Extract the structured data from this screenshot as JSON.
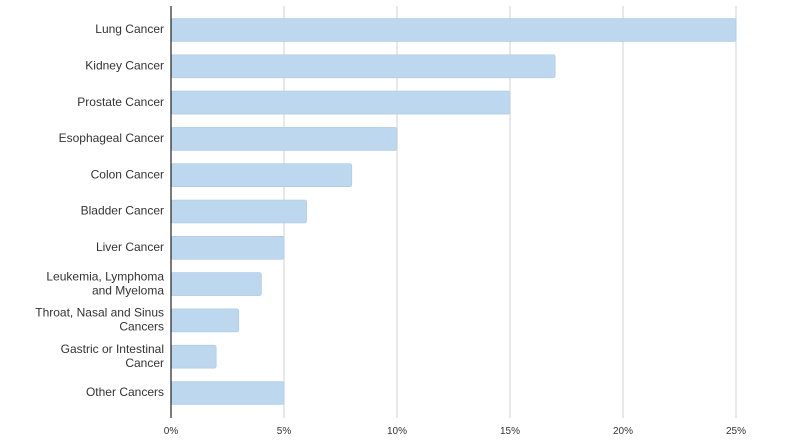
{
  "colors": {
    "bar": "#bdd7ee",
    "bar_stroke": "#a9c8e6",
    "grid": "#d0d0d0",
    "axis": "#222222",
    "text": "#333333"
  },
  "chart_data": {
    "type": "bar",
    "orientation": "horizontal",
    "title": "",
    "xlabel": "",
    "ylabel": "",
    "categories": [
      "Lung Cancer",
      "Kidney Cancer",
      "Prostate Cancer",
      "Esophageal Cancer",
      "Colon Cancer",
      "Bladder Cancer",
      "Liver Cancer",
      "Leukemia, Lymphoma and Myeloma",
      "Throat, Nasal and Sinus Cancers",
      "Gastric or Intestinal Cancer",
      "Other Cancers"
    ],
    "category_lines": [
      [
        "Lung Cancer"
      ],
      [
        "Kidney Cancer"
      ],
      [
        "Prostate Cancer"
      ],
      [
        "Esophageal Cancer"
      ],
      [
        "Colon Cancer"
      ],
      [
        "Bladder Cancer"
      ],
      [
        "Liver Cancer"
      ],
      [
        "Leukemia, Lymphoma",
        "and Myeloma"
      ],
      [
        "Throat, Nasal and Sinus",
        "Cancers"
      ],
      [
        "Gastric or Intestinal",
        "Cancer"
      ],
      [
        "Other Cancers"
      ]
    ],
    "values": [
      25,
      17,
      15,
      10,
      8,
      6,
      5,
      4,
      3,
      2,
      5
    ],
    "value_unit": "%",
    "xlim": [
      0,
      25
    ],
    "x_ticks": [
      0,
      5,
      10,
      15,
      20,
      25
    ],
    "x_tick_labels": [
      "0%",
      "5%",
      "10%",
      "15%",
      "20%",
      "25%"
    ],
    "grid": "vertical",
    "legend": "none"
  }
}
